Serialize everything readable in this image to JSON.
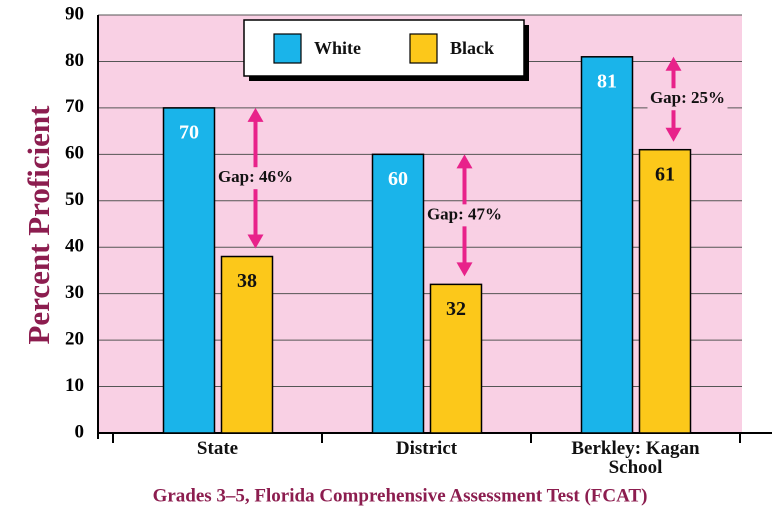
{
  "chart_data": {
    "type": "bar",
    "title": "Grades 3–5, Florida Comprehensive Assessment Test (FCAT)",
    "ylabel": "Percent Proficient",
    "categories": [
      "State",
      "District",
      "Berkley: Kagan School"
    ],
    "series": [
      {
        "name": "White",
        "color": "#1ab4ea",
        "values": [
          70,
          60,
          81
        ]
      },
      {
        "name": "Black",
        "color": "#fcc81a",
        "values": [
          38,
          32,
          61
        ]
      }
    ],
    "annotations": [
      "Gap: 46%",
      "Gap: 47%",
      "Gap: 25%"
    ],
    "ylim": [
      0,
      90
    ],
    "yticks": [
      0,
      10,
      20,
      30,
      40,
      50,
      60,
      70,
      80,
      90
    ],
    "grid": true,
    "legend": "top"
  }
}
